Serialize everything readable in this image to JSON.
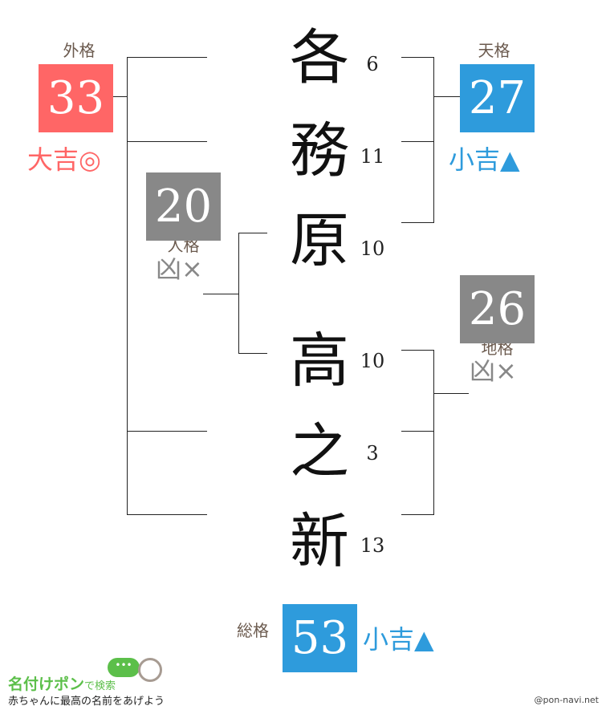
{
  "name_chars": [
    {
      "char": "各",
      "strokes": "6"
    },
    {
      "char": "務",
      "strokes": "11"
    },
    {
      "char": "原",
      "strokes": "10"
    },
    {
      "char": "高",
      "strokes": "10"
    },
    {
      "char": "之",
      "strokes": "3"
    },
    {
      "char": "新",
      "strokes": "13"
    }
  ],
  "gaikaku": {
    "label": "外格",
    "value": "33",
    "fortune": "大吉◎",
    "color": "#ff6666"
  },
  "tenkaku": {
    "label": "天格",
    "value": "27",
    "fortune": "小吉▲",
    "color": "#2e9bdc"
  },
  "jinkaku": {
    "label": "人格",
    "value": "20",
    "fortune": "凶×",
    "color": "#888888"
  },
  "chikaku": {
    "label": "地格",
    "value": "26",
    "fortune": "凶×",
    "color": "#888888"
  },
  "soukaku": {
    "label": "総格",
    "value": "53",
    "fortune": "小吉▲",
    "color": "#2e9bdc"
  },
  "footer": {
    "logo_title": "名付けポン",
    "logo_suffix": "で検索",
    "tagline": "赤ちゃんに最高の名前をあげよう",
    "credit": "@pon-navi.net",
    "bubble_icon": "speech-bubble-icon",
    "baby_icon": "baby-face-icon"
  }
}
